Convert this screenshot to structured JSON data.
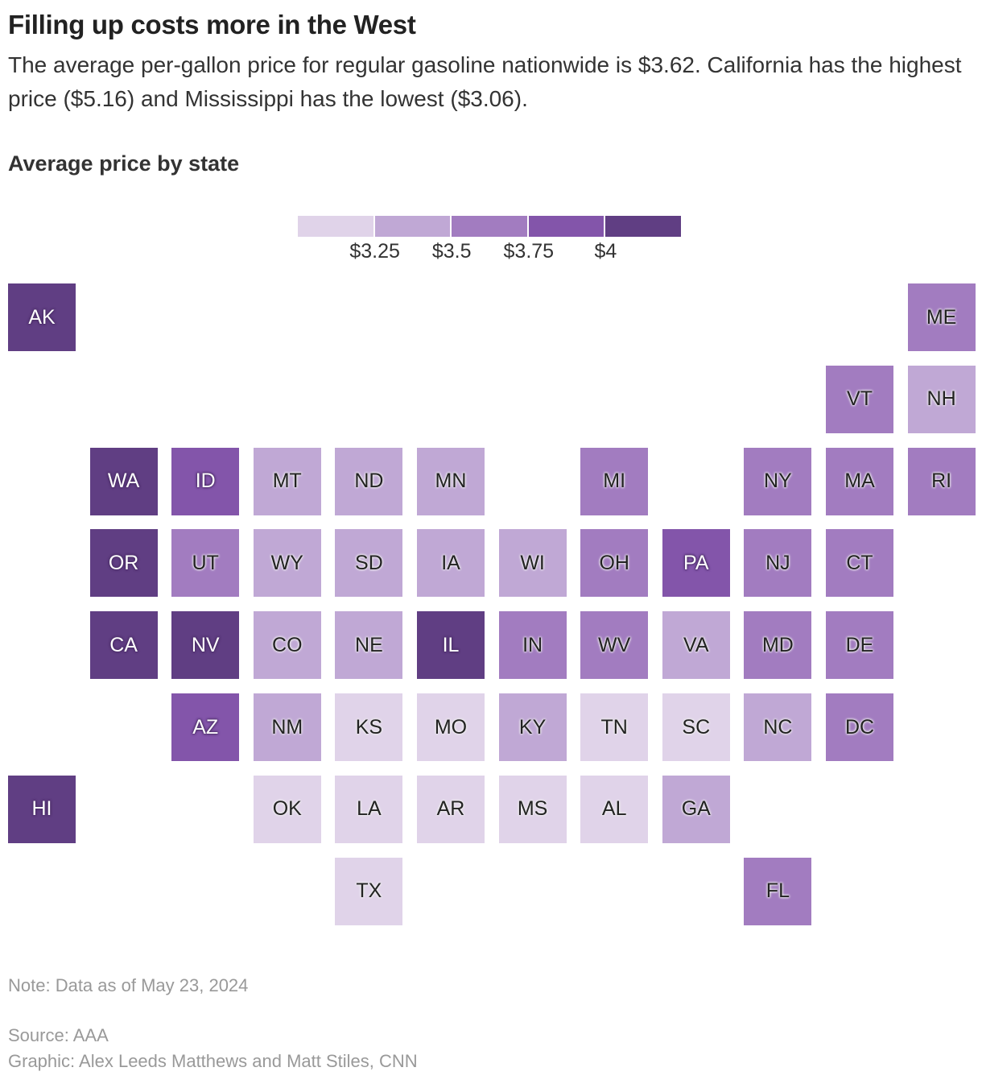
{
  "title": "Filling up costs more in the West",
  "subtitle": "The average per-gallon price for regular gasoline nationwide is $3.62. California has the highest price ($5.16) and Mississippi has the lowest ($3.06).",
  "map_label": "Average price by state",
  "note": "Note: Data as of May 23, 2024",
  "source": "Source: AAA",
  "credit": "Graphic: Alex Leeds Matthews and Matt Stiles, CNN",
  "chart_data": {
    "type": "heatmap",
    "subtype": "tile grid map",
    "legend": {
      "thresholds": [
        "$3.25",
        "$3.5",
        "$3.75",
        "$4"
      ],
      "colors": [
        "#e0d3e9",
        "#c0a8d5",
        "#a27cc0",
        "#8355aa",
        "#603e83"
      ],
      "bins": [
        "< $3.25",
        "$3.25–$3.5",
        "$3.5–$3.75",
        "$3.75–$4",
        "> $4"
      ]
    },
    "states": [
      {
        "state": "AK",
        "row": 0,
        "col": 0,
        "bin": 4
      },
      {
        "state": "ME",
        "row": 0,
        "col": 11,
        "bin": 2
      },
      {
        "state": "VT",
        "row": 1,
        "col": 10,
        "bin": 2
      },
      {
        "state": "NH",
        "row": 1,
        "col": 11,
        "bin": 1
      },
      {
        "state": "WA",
        "row": 2,
        "col": 1,
        "bin": 4
      },
      {
        "state": "ID",
        "row": 2,
        "col": 2,
        "bin": 3
      },
      {
        "state": "MT",
        "row": 2,
        "col": 3,
        "bin": 1
      },
      {
        "state": "ND",
        "row": 2,
        "col": 4,
        "bin": 1
      },
      {
        "state": "MN",
        "row": 2,
        "col": 5,
        "bin": 1
      },
      {
        "state": "MI",
        "row": 2,
        "col": 7,
        "bin": 2
      },
      {
        "state": "NY",
        "row": 2,
        "col": 9,
        "bin": 2
      },
      {
        "state": "MA",
        "row": 2,
        "col": 10,
        "bin": 2
      },
      {
        "state": "RI",
        "row": 2,
        "col": 11,
        "bin": 2
      },
      {
        "state": "OR",
        "row": 3,
        "col": 1,
        "bin": 4
      },
      {
        "state": "UT",
        "row": 3,
        "col": 2,
        "bin": 2
      },
      {
        "state": "WY",
        "row": 3,
        "col": 3,
        "bin": 1
      },
      {
        "state": "SD",
        "row": 3,
        "col": 4,
        "bin": 1
      },
      {
        "state": "IA",
        "row": 3,
        "col": 5,
        "bin": 1
      },
      {
        "state": "WI",
        "row": 3,
        "col": 6,
        "bin": 1
      },
      {
        "state": "OH",
        "row": 3,
        "col": 7,
        "bin": 2
      },
      {
        "state": "PA",
        "row": 3,
        "col": 8,
        "bin": 3
      },
      {
        "state": "NJ",
        "row": 3,
        "col": 9,
        "bin": 2
      },
      {
        "state": "CT",
        "row": 3,
        "col": 10,
        "bin": 2
      },
      {
        "state": "CA",
        "row": 4,
        "col": 1,
        "bin": 4
      },
      {
        "state": "NV",
        "row": 4,
        "col": 2,
        "bin": 4
      },
      {
        "state": "CO",
        "row": 4,
        "col": 3,
        "bin": 1
      },
      {
        "state": "NE",
        "row": 4,
        "col": 4,
        "bin": 1
      },
      {
        "state": "IL",
        "row": 4,
        "col": 5,
        "bin": 4
      },
      {
        "state": "IN",
        "row": 4,
        "col": 6,
        "bin": 2
      },
      {
        "state": "WV",
        "row": 4,
        "col": 7,
        "bin": 2
      },
      {
        "state": "VA",
        "row": 4,
        "col": 8,
        "bin": 1
      },
      {
        "state": "MD",
        "row": 4,
        "col": 9,
        "bin": 2
      },
      {
        "state": "DE",
        "row": 4,
        "col": 10,
        "bin": 2
      },
      {
        "state": "AZ",
        "row": 5,
        "col": 2,
        "bin": 3
      },
      {
        "state": "NM",
        "row": 5,
        "col": 3,
        "bin": 1
      },
      {
        "state": "KS",
        "row": 5,
        "col": 4,
        "bin": 0
      },
      {
        "state": "MO",
        "row": 5,
        "col": 5,
        "bin": 0
      },
      {
        "state": "KY",
        "row": 5,
        "col": 6,
        "bin": 1
      },
      {
        "state": "TN",
        "row": 5,
        "col": 7,
        "bin": 0
      },
      {
        "state": "SC",
        "row": 5,
        "col": 8,
        "bin": 0
      },
      {
        "state": "NC",
        "row": 5,
        "col": 9,
        "bin": 1
      },
      {
        "state": "DC",
        "row": 5,
        "col": 10,
        "bin": 2
      },
      {
        "state": "HI",
        "row": 6,
        "col": 0,
        "bin": 4
      },
      {
        "state": "OK",
        "row": 6,
        "col": 3,
        "bin": 0
      },
      {
        "state": "LA",
        "row": 6,
        "col": 4,
        "bin": 0
      },
      {
        "state": "AR",
        "row": 6,
        "col": 5,
        "bin": 0
      },
      {
        "state": "MS",
        "row": 6,
        "col": 6,
        "bin": 0
      },
      {
        "state": "AL",
        "row": 6,
        "col": 7,
        "bin": 0
      },
      {
        "state": "GA",
        "row": 6,
        "col": 8,
        "bin": 1
      },
      {
        "state": "TX",
        "row": 7,
        "col": 4,
        "bin": 0
      },
      {
        "state": "FL",
        "row": 7,
        "col": 9,
        "bin": 2
      }
    ]
  }
}
